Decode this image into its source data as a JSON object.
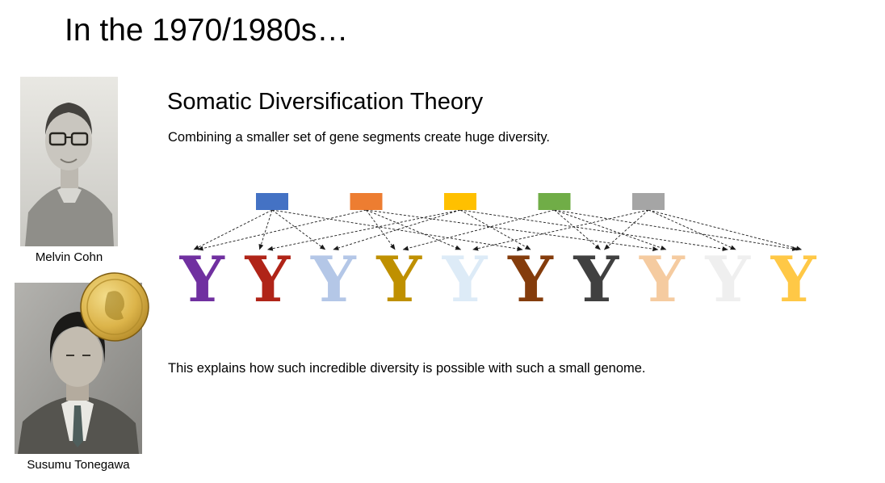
{
  "slide": {
    "title": "In the 1970/1980s…"
  },
  "photos": [
    {
      "caption": "Melvin Cohn",
      "icon": "melvin-cohn-portrait"
    },
    {
      "caption": "Susumu Tonegawa",
      "icon": "susumu-tonegawa-portrait",
      "badge": "nobel-medal"
    }
  ],
  "content": {
    "heading": "Somatic Diversification Theory",
    "subheading": "Combining a smaller set of gene segments create huge diversity.",
    "conclusion": "This explains how such incredible diversity is possible with such a small genome."
  },
  "diagram": {
    "glyph": "Y",
    "segments": [
      {
        "name": "gene-segment-blue",
        "color": "#4472C4",
        "targets": [
          0,
          1,
          2,
          5
        ]
      },
      {
        "name": "gene-segment-orange",
        "color": "#ED7D31",
        "targets": [
          0,
          3,
          4,
          7
        ]
      },
      {
        "name": "gene-segment-yellow",
        "color": "#FFC000",
        "targets": [
          1,
          2,
          5,
          8
        ]
      },
      {
        "name": "gene-segment-green",
        "color": "#70AD47",
        "targets": [
          3,
          6,
          7,
          9
        ]
      },
      {
        "name": "gene-segment-gray",
        "color": "#A5A5A5",
        "targets": [
          4,
          6,
          8,
          9
        ]
      }
    ],
    "antibodies": [
      {
        "color": "#7030A0"
      },
      {
        "color": "#B02418"
      },
      {
        "color": "#B4C7E7"
      },
      {
        "color": "#BF9000"
      },
      {
        "color": "#DDEBF7"
      },
      {
        "color": "#843C0C"
      },
      {
        "color": "#404040"
      },
      {
        "color": "#F5CBA0"
      },
      {
        "color": "#EFEFEF"
      },
      {
        "color": "#FFC846"
      }
    ]
  }
}
